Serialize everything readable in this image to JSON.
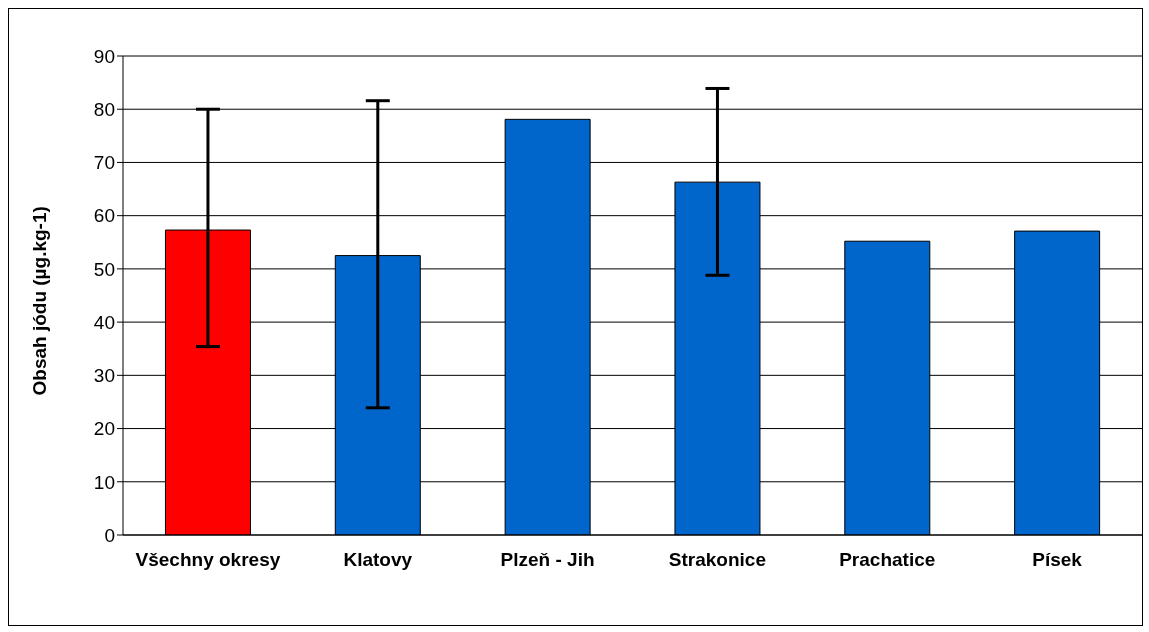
{
  "chart_data": {
    "type": "bar",
    "ylabel": "Obsah jódu (µg.kg-1)",
    "categories": [
      "Všechny okresy",
      "Klatovy",
      "Plzeň - Jih",
      "Strakonice",
      "Prachatice",
      "Písek"
    ],
    "values": [
      57.3,
      52.5,
      78.1,
      66.3,
      55.2,
      57.1
    ],
    "colors": [
      "#ff0000",
      "#0066cc",
      "#0066cc",
      "#0066cc",
      "#0066cc",
      "#0066cc"
    ],
    "errors": [
      [
        35.4,
        80.0
      ],
      [
        23.9,
        81.6
      ],
      null,
      [
        48.8,
        83.9
      ],
      null,
      null
    ],
    "ylim": [
      0,
      90
    ],
    "yticks": [
      0,
      10,
      20,
      30,
      40,
      50,
      60,
      70,
      80,
      90
    ],
    "grid": "y",
    "legend": false
  }
}
